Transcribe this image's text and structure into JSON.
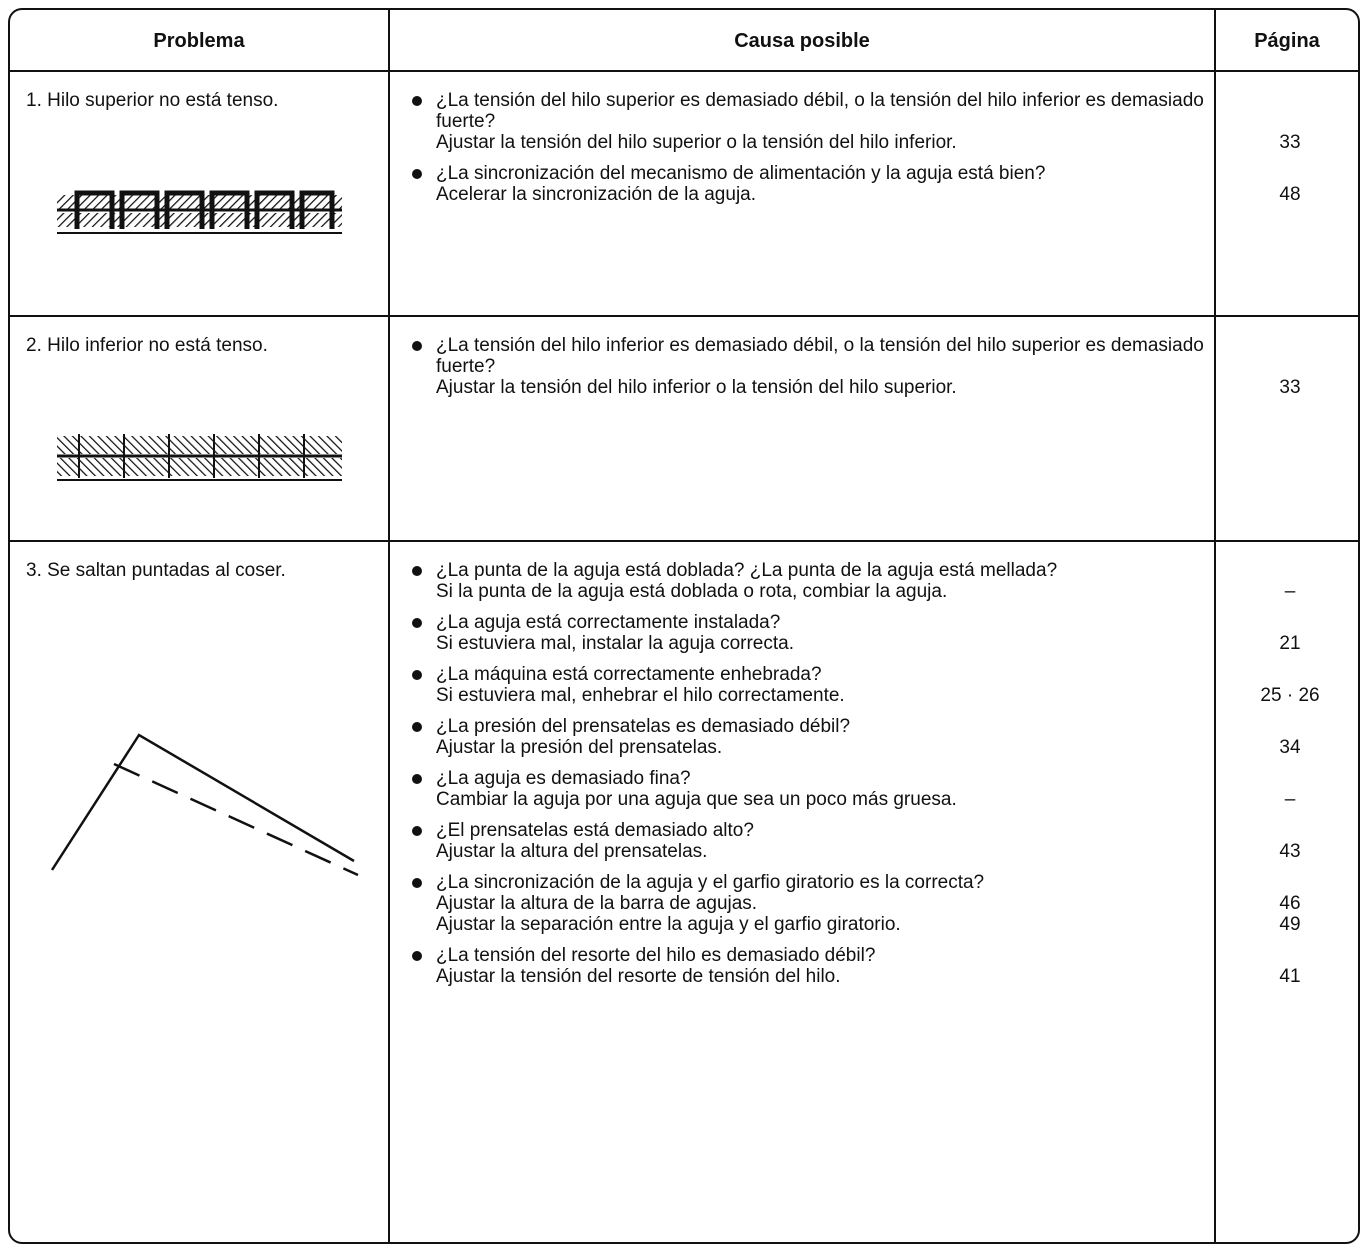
{
  "header": [
    "Problema",
    "Causa posible",
    "Página"
  ],
  "rows": [
    {
      "problem": "1. Hilo superior no está tenso.",
      "causes": [
        {
          "question": "¿La tensión del hilo superior es demasiado débil, o la tensión del hilo inferior es demasiado fuerte?",
          "actions": [
            {
              "text": "Ajustar la tensión del hilo superior o la tensión del hilo inferior.",
              "page": "33"
            }
          ]
        },
        {
          "question": "¿La sincronización del mecanismo de alimentación y la aguja está bien?",
          "actions": [
            {
              "text": "Acelerar la sincronización de la aguja.",
              "page": "48"
            }
          ]
        }
      ]
    },
    {
      "problem": "2. Hilo inferior no está tenso.",
      "causes": [
        {
          "question": "¿La tensión del hilo inferior es demasiado débil, o la tensión del hilo superior es demasiado fuerte?",
          "actions": [
            {
              "text": "Ajustar la tensión del hilo inferior o la tensión del hilo superior.",
              "page": "33"
            }
          ]
        }
      ]
    },
    {
      "problem": "3. Se saltan puntadas al coser.",
      "causes": [
        {
          "question": "¿La punta de la aguja está doblada? ¿La punta de la aguja está mellada?",
          "actions": [
            {
              "text": "Si la punta de la aguja está doblada o rota, combiar la aguja.",
              "page": "–"
            }
          ]
        },
        {
          "question": "¿La aguja está correctamente instalada?",
          "actions": [
            {
              "text": "Si estuviera mal, instalar la aguja correcta.",
              "page": "21"
            }
          ]
        },
        {
          "question": "¿La máquina está correctamente enhebrada?",
          "actions": [
            {
              "text": "Si estuviera mal, enhebrar el hilo correctamente.",
              "page": "25 · 26"
            }
          ]
        },
        {
          "question": "¿La presión del prensatelas es demasiado débil?",
          "actions": [
            {
              "text": "Ajustar la presión del prensatelas.",
              "page": "34"
            }
          ]
        },
        {
          "question": "¿La aguja es demasiado fina?",
          "actions": [
            {
              "text": "Cambiar la aguja por una aguja que sea un poco más gruesa.",
              "page": "–"
            }
          ]
        },
        {
          "question": "¿El prensatelas está demasiado alto?",
          "actions": [
            {
              "text": "Ajustar la altura del prensatelas.",
              "page": "43"
            }
          ]
        },
        {
          "question": "¿La sincronización de la aguja y el garfio giratorio es la correcta?",
          "actions": [
            {
              "text": "Ajustar la altura de la barra de agujas.",
              "page": "46"
            },
            {
              "text": "Ajustar la separación entre la aguja y el garfio giratorio.",
              "page": "49"
            }
          ]
        },
        {
          "question": "¿La tensión del resorte del hilo es demasiado débil?",
          "actions": [
            {
              "text": "Ajustar la tensión del resorte de tensión del hilo.",
              "page": "41"
            }
          ]
        }
      ]
    }
  ]
}
